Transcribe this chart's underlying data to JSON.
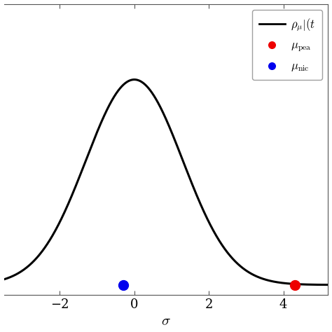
{
  "title": "",
  "xlabel": "$\\sigma$",
  "ylabel": "",
  "xlim": [
    -3.5,
    5.2
  ],
  "ylim": [
    -0.015,
    0.42
  ],
  "xticks": [
    -2,
    0,
    2,
    4
  ],
  "yticks": [],
  "curve_mean": 0.0,
  "curve_std": 1.3,
  "mu_nice": -0.3,
  "mu_peak": 4.3,
  "mu_nice_color": "#0000ee",
  "mu_peak_color": "#ee0000",
  "dot_size": 100,
  "line_color": "#000000",
  "line_width": 2.2,
  "figsize": [
    4.74,
    4.74
  ],
  "dpi": 100,
  "font_size_ticks": 13,
  "font_size_xlabel": 15
}
